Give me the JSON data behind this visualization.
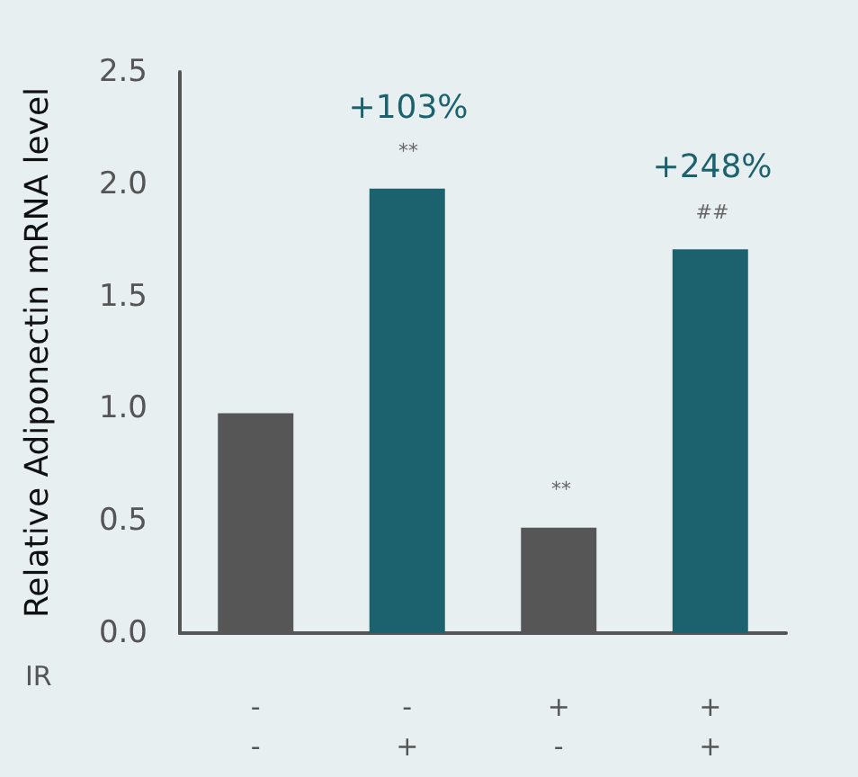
{
  "chart_data": {
    "type": "bar",
    "ylabel": "Relative Adiponectin mRNA level",
    "categories": [
      "-\n-",
      "-\n+",
      "+\n-",
      "+\n+"
    ],
    "values": [
      0.98,
      1.98,
      0.47,
      1.71
    ],
    "colors": [
      "#575656",
      "#1b626e",
      "#575656",
      "#1b626e"
    ],
    "ylim": [
      0,
      2.5
    ],
    "yticks": [
      "0.0",
      0.5,
      "1.0",
      1.5,
      "2.0",
      2.5
    ],
    "grid": false,
    "annotations": [
      "+103%",
      "**",
      "**",
      "+248%",
      "##",
      "IR"
    ]
  }
}
